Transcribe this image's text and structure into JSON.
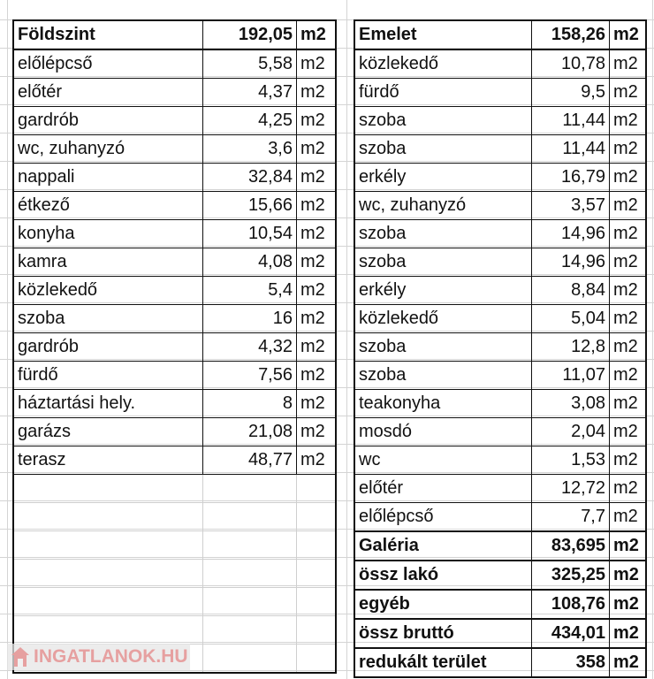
{
  "left": {
    "header": {
      "label": "Földszint",
      "value": "192,05",
      "unit": "m2"
    },
    "rows": [
      [
        "előlépcső",
        "5,58",
        "m2"
      ],
      [
        "előtér",
        "4,37",
        "m2"
      ],
      [
        "gardrób",
        "4,25",
        "m2"
      ],
      [
        "wc, zuhanyzó",
        "3,6",
        "m2"
      ],
      [
        "nappali",
        "32,84",
        "m2"
      ],
      [
        "étkező",
        "15,66",
        "m2"
      ],
      [
        "konyha",
        "10,54",
        "m2"
      ],
      [
        "kamra",
        "4,08",
        "m2"
      ],
      [
        "közlekedő",
        "5,4",
        "m2"
      ],
      [
        "szoba",
        "16",
        "m2"
      ],
      [
        "gardrób",
        "4,32",
        "m2"
      ],
      [
        "fürdő",
        "7,56",
        "m2"
      ],
      [
        "háztartási hely.",
        "8",
        "m2"
      ],
      [
        "garázs",
        "21,08",
        "m2"
      ],
      [
        "terasz",
        "48,77",
        "m2"
      ]
    ]
  },
  "right": {
    "header": {
      "label": "Emelet",
      "value": "158,26",
      "unit": "m2"
    },
    "rows": [
      [
        "közlekedő",
        "10,78",
        "m2"
      ],
      [
        "fürdő",
        "9,5",
        "m2"
      ],
      [
        "szoba",
        "11,44",
        "m2"
      ],
      [
        "szoba",
        "11,44",
        "m2"
      ],
      [
        "erkély",
        "16,79",
        "m2"
      ],
      [
        "wc, zuhanyzó",
        "3,57",
        "m2"
      ],
      [
        "szoba",
        "14,96",
        "m2"
      ],
      [
        "szoba",
        "14,96",
        "m2"
      ],
      [
        "erkély",
        "8,84",
        "m2"
      ],
      [
        "közlekedő",
        "5,04",
        "m2"
      ],
      [
        "szoba",
        "12,8",
        "m2"
      ],
      [
        "szoba",
        "11,07",
        "m2"
      ],
      [
        "teakonyha",
        "3,08",
        "m2"
      ],
      [
        "mosdó",
        "2,04",
        "m2"
      ],
      [
        "wc",
        "1,53",
        "m2"
      ],
      [
        "előtér",
        "12,72",
        "m2"
      ],
      [
        "előlépcső",
        "7,7",
        "m2"
      ]
    ],
    "summary": [
      [
        "Galéria",
        "83,695",
        "m2"
      ],
      [
        "össz lakó",
        "325,25",
        "m2"
      ],
      [
        "egyéb",
        "108,76",
        "m2"
      ],
      [
        "össz bruttó",
        "434,01",
        "m2"
      ],
      [
        "redukált terület",
        "358",
        "m2"
      ]
    ]
  },
  "watermark": {
    "text": "INGATLANOK.HU",
    "icon": "house-icon"
  }
}
